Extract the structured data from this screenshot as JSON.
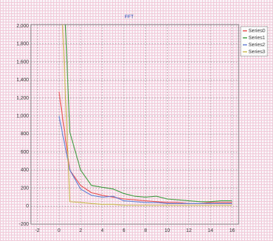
{
  "chart_data": {
    "type": "line",
    "title": "FFT",
    "x": [
      0,
      1,
      2,
      3,
      4,
      5,
      6,
      7,
      8,
      9,
      10,
      11,
      12,
      13,
      14,
      15,
      16
    ],
    "series": [
      {
        "name": "Series0",
        "color": "#e84c4c",
        "values": [
          1270,
          400,
          230,
          150,
          120,
          100,
          80,
          70,
          60,
          50,
          40,
          40,
          30,
          30,
          40,
          40,
          40
        ]
      },
      {
        "name": "Series1",
        "color": "#3a9a3a",
        "values": [
          3770,
          820,
          400,
          230,
          210,
          190,
          140,
          110,
          100,
          110,
          80,
          70,
          60,
          50,
          50,
          60,
          60
        ]
      },
      {
        "name": "Series2",
        "color": "#5a7fd6",
        "values": [
          1000,
          400,
          190,
          120,
          100,
          110,
          60,
          50,
          40,
          40,
          30,
          30,
          30,
          30,
          30,
          30,
          30
        ]
      },
      {
        "name": "Series3",
        "color": "#c8b84a",
        "values": [
          3000,
          50,
          40,
          30,
          20,
          20,
          10,
          10,
          10,
          10,
          10,
          10,
          10,
          10,
          10,
          10,
          10
        ]
      }
    ],
    "xlim": [
      -2.6,
      16.6
    ],
    "ylim": [
      -200,
      2000
    ],
    "xticks": [
      -2,
      0,
      2,
      4,
      6,
      8,
      10,
      12,
      14,
      16
    ],
    "yticks": [
      {
        "value": 2000,
        "label": "2,000"
      },
      {
        "value": 1800,
        "label": "1,800"
      },
      {
        "value": 1600,
        "label": "1,600"
      },
      {
        "value": 1400,
        "label": "1,400"
      },
      {
        "value": 1200,
        "label": "1,200"
      },
      {
        "value": 1000,
        "label": "1,000"
      },
      800,
      600,
      400,
      200,
      0,
      -200
    ],
    "grid": true,
    "legend": "top-right"
  }
}
